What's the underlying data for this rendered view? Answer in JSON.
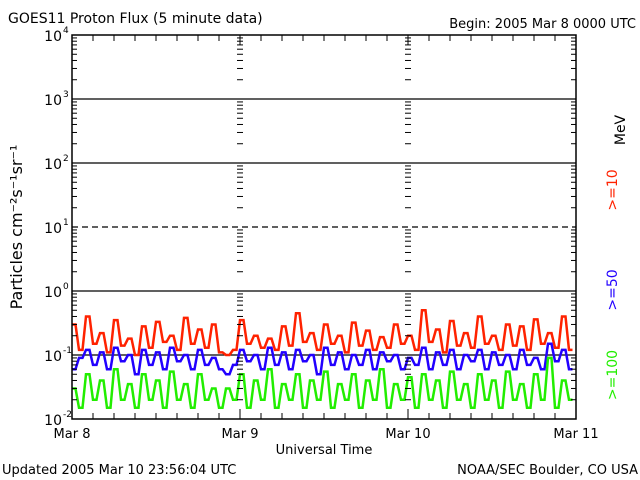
{
  "chart_data": {
    "type": "line",
    "title": "GOES11 Proton Flux (5 minute data)",
    "begin": "Begin: 2005 Mar 8 0000 UTC",
    "xlabel": "Universal Time",
    "ylabel": "Particles cm⁻²s⁻¹sr⁻¹",
    "unit_label": "MeV",
    "updated": "Updated 2005 Mar 10 23:56:04 UTC",
    "credit": "NOAA/SEC Boulder, CO USA",
    "y_scale": "log",
    "ylim": [
      0.01,
      10000
    ],
    "y_ticks": [
      {
        "base": "10",
        "exp": "-2",
        "v": 0.01
      },
      {
        "base": "10",
        "exp": "-1",
        "v": 0.1
      },
      {
        "base": "10",
        "exp": "0",
        "v": 1
      },
      {
        "base": "10",
        "exp": "1",
        "v": 10
      },
      {
        "base": "10",
        "exp": "2",
        "v": 100
      },
      {
        "base": "10",
        "exp": "3",
        "v": 1000
      },
      {
        "base": "10",
        "exp": "4",
        "v": 10000
      }
    ],
    "x_range_hours": [
      0,
      72
    ],
    "x_ticks": [
      {
        "label": "Mar 8",
        "h": 0
      },
      {
        "label": "Mar 9",
        "h": 24
      },
      {
        "label": "Mar 10",
        "h": 48
      },
      {
        "label": "Mar 11",
        "h": 72
      }
    ],
    "threshold_lines": [
      {
        "v": 1000,
        "style": "solid"
      },
      {
        "v": 100,
        "style": "solid"
      },
      {
        "v": 10,
        "style": "dashed"
      },
      {
        "v": 1,
        "style": "solid"
      },
      {
        "v": 0.1,
        "style": "solid"
      }
    ],
    "sample_interval_hours": 1,
    "series": [
      {
        "name": ">=10",
        "color": "#ff2200",
        "values": [
          0.3,
          0.12,
          0.4,
          0.15,
          0.22,
          0.11,
          0.35,
          0.14,
          0.18,
          0.1,
          0.28,
          0.13,
          0.33,
          0.16,
          0.2,
          0.12,
          0.38,
          0.15,
          0.25,
          0.13,
          0.3,
          0.11,
          0.1,
          0.12,
          0.35,
          0.15,
          0.2,
          0.13,
          0.18,
          0.12,
          0.28,
          0.14,
          0.45,
          0.16,
          0.22,
          0.12,
          0.3,
          0.15,
          0.2,
          0.11,
          0.32,
          0.14,
          0.24,
          0.12,
          0.19,
          0.13,
          0.3,
          0.15,
          0.2,
          0.12,
          0.5,
          0.16,
          0.25,
          0.11,
          0.34,
          0.14,
          0.22,
          0.13,
          0.4,
          0.15,
          0.2,
          0.12,
          0.3,
          0.14,
          0.28,
          0.12,
          0.36,
          0.15,
          0.22,
          0.13,
          0.4,
          0.12
        ]
      },
      {
        "name": ">=50",
        "color": "#2200ff",
        "values": [
          0.06,
          0.09,
          0.12,
          0.07,
          0.11,
          0.06,
          0.13,
          0.08,
          0.1,
          0.05,
          0.12,
          0.07,
          0.11,
          0.06,
          0.13,
          0.08,
          0.1,
          0.06,
          0.12,
          0.07,
          0.09,
          0.06,
          0.05,
          0.07,
          0.12,
          0.08,
          0.1,
          0.06,
          0.13,
          0.07,
          0.11,
          0.06,
          0.12,
          0.08,
          0.1,
          0.05,
          0.13,
          0.07,
          0.11,
          0.06,
          0.1,
          0.07,
          0.12,
          0.06,
          0.11,
          0.08,
          0.1,
          0.06,
          0.09,
          0.07,
          0.13,
          0.06,
          0.11,
          0.07,
          0.12,
          0.06,
          0.1,
          0.08,
          0.12,
          0.06,
          0.11,
          0.07,
          0.1,
          0.06,
          0.12,
          0.07,
          0.09,
          0.06,
          0.15,
          0.08,
          0.12,
          0.06
        ]
      },
      {
        "name": ">=100",
        "color": "#22ee00",
        "values": [
          0.03,
          0.015,
          0.05,
          0.02,
          0.04,
          0.015,
          0.06,
          0.02,
          0.035,
          0.015,
          0.05,
          0.02,
          0.04,
          0.015,
          0.055,
          0.02,
          0.035,
          0.015,
          0.05,
          0.02,
          0.03,
          0.015,
          0.03,
          0.02,
          0.05,
          0.015,
          0.04,
          0.02,
          0.06,
          0.015,
          0.035,
          0.02,
          0.05,
          0.015,
          0.04,
          0.02,
          0.055,
          0.015,
          0.035,
          0.02,
          0.05,
          0.015,
          0.04,
          0.02,
          0.06,
          0.015,
          0.035,
          0.02,
          0.045,
          0.015,
          0.05,
          0.02,
          0.04,
          0.015,
          0.055,
          0.02,
          0.035,
          0.015,
          0.05,
          0.02,
          0.04,
          0.015,
          0.055,
          0.02,
          0.035,
          0.015,
          0.05,
          0.02,
          0.09,
          0.015,
          0.04,
          0.02
        ]
      }
    ]
  }
}
